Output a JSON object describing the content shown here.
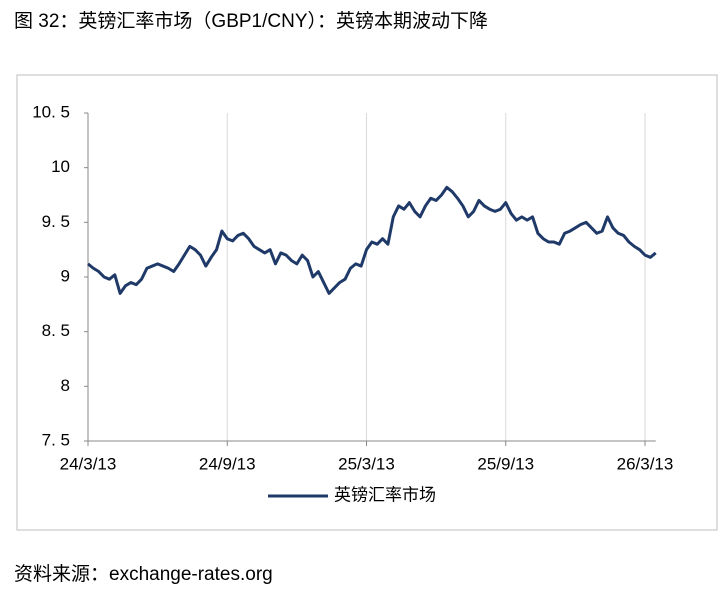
{
  "chart_data": {
    "type": "line",
    "title": "图 32：英镑汇率市场（GBP1/CNY）：英镑本期波动下降",
    "source": "资料来源：exchange-rates.org",
    "categories": [
      "24/3/13",
      null,
      null,
      null,
      null,
      null,
      null,
      null,
      null,
      null,
      null,
      null,
      null,
      null,
      null,
      null,
      null,
      null,
      null,
      null,
      null,
      null,
      null,
      null,
      null,
      null,
      "24/9/13",
      null,
      null,
      null,
      null,
      null,
      null,
      null,
      null,
      null,
      null,
      null,
      null,
      null,
      null,
      null,
      null,
      null,
      null,
      null,
      null,
      null,
      null,
      null,
      null,
      null,
      "25/3/13",
      null,
      null,
      null,
      null,
      null,
      null,
      null,
      null,
      null,
      null,
      null,
      null,
      null,
      null,
      null,
      null,
      null,
      null,
      null,
      null,
      null,
      null,
      null,
      null,
      null,
      "25/9/13",
      null,
      null,
      null,
      null,
      null,
      null,
      null,
      null,
      null,
      null,
      null,
      null,
      null,
      null,
      null,
      null,
      null,
      null,
      null,
      null,
      null,
      null,
      null,
      null,
      null,
      "26/3/13",
      null,
      null
    ],
    "series": [
      {
        "name": "英镑汇率市场",
        "color": "#1f3a68",
        "values": [
          9.12,
          9.08,
          9.05,
          9.0,
          8.98,
          9.02,
          8.85,
          8.92,
          8.95,
          8.93,
          8.98,
          9.08,
          9.1,
          9.12,
          9.1,
          9.08,
          9.05,
          9.12,
          9.2,
          9.28,
          9.25,
          9.2,
          9.1,
          9.18,
          9.25,
          9.42,
          9.35,
          9.33,
          9.38,
          9.4,
          9.35,
          9.28,
          9.25,
          9.22,
          9.25,
          9.12,
          9.22,
          9.2,
          9.15,
          9.12,
          9.2,
          9.15,
          9.0,
          9.05,
          8.95,
          8.85,
          8.9,
          8.95,
          8.98,
          9.08,
          9.12,
          9.1,
          9.25,
          9.32,
          9.3,
          9.35,
          9.3,
          9.55,
          9.65,
          9.62,
          9.68,
          9.6,
          9.55,
          9.65,
          9.72,
          9.7,
          9.75,
          9.82,
          9.78,
          9.72,
          9.65,
          9.55,
          9.6,
          9.7,
          9.65,
          9.62,
          9.6,
          9.62,
          9.68,
          9.58,
          9.52,
          9.55,
          9.52,
          9.55,
          9.4,
          9.35,
          9.32,
          9.32,
          9.3,
          9.4,
          9.42,
          9.45,
          9.48,
          9.5,
          9.45,
          9.4,
          9.42,
          9.55,
          9.45,
          9.4,
          9.38,
          9.32,
          9.28,
          9.25,
          9.2,
          9.18,
          9.22
        ]
      }
    ],
    "ylim": [
      7.5,
      10.5
    ],
    "yticks": [
      {
        "value": 7.5,
        "label": "7. 5"
      },
      8,
      {
        "value": 8.5,
        "label": "8. 5"
      },
      9,
      {
        "value": 9.5,
        "label": "9. 5"
      },
      10,
      {
        "value": 10.5,
        "label": "10. 5"
      }
    ],
    "grid": "x",
    "legend": "bottom"
  }
}
